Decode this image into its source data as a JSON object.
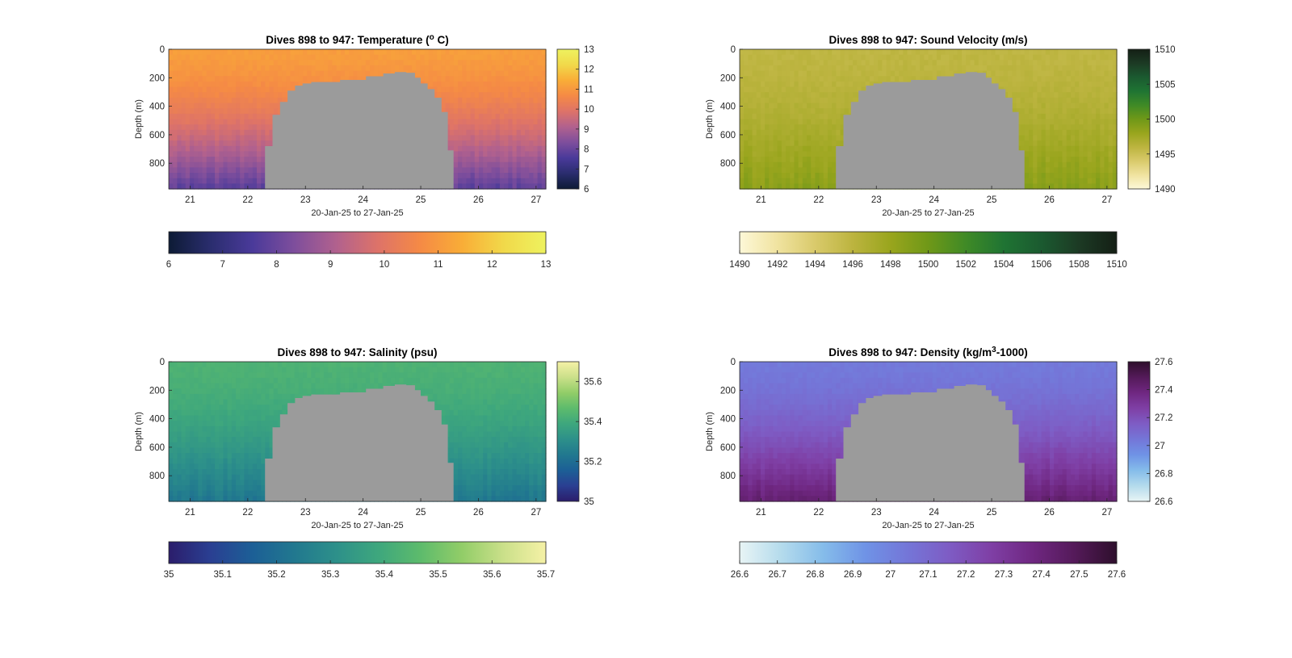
{
  "chart_data": [
    {
      "type": "heatmap",
      "title": "Dives 898 to 947: Temperature (",
      "title_sup": "o",
      "title_tail": " C)",
      "xlabel": "20-Jan-25 to 27-Jan-25",
      "ylabel": "Depth (m)",
      "xticks": [
        "21",
        "22",
        "23",
        "24",
        "25",
        "26",
        "27"
      ],
      "yticks": [
        "0",
        "200",
        "400",
        "600",
        "800"
      ],
      "xlim": [
        20.63,
        27.17
      ],
      "ylim": [
        0,
        980
      ],
      "colorbar_right_ticks": [
        "6",
        "7",
        "8",
        "9",
        "10",
        "11",
        "12",
        "13"
      ],
      "colorbar_bottom_ticks": [
        "6",
        "7",
        "8",
        "9",
        "10",
        "11",
        "12",
        "13"
      ],
      "clim": [
        6,
        13
      ],
      "colormap": [
        "#0d1b35",
        "#2a2d6e",
        "#4a3a9a",
        "#7e4e9c",
        "#b1618e",
        "#de7368",
        "#f58a45",
        "#f9ad37",
        "#f1d94a",
        "#eef25f"
      ],
      "surface_value": 11.1,
      "bottom_value": 7.8,
      "missing_color": "#9b9b9b",
      "missing_region_depth_top": [
        [
          22.3,
          680
        ],
        [
          22.43,
          460
        ],
        [
          22.56,
          370
        ],
        [
          22.69,
          290
        ],
        [
          22.82,
          255
        ],
        [
          22.95,
          240
        ],
        [
          23.1,
          230
        ],
        [
          23.6,
          215
        ],
        [
          24.05,
          190
        ],
        [
          24.35,
          170
        ],
        [
          24.55,
          160
        ],
        [
          24.75,
          165
        ],
        [
          24.9,
          200
        ],
        [
          25.0,
          240
        ],
        [
          25.12,
          280
        ],
        [
          25.24,
          340
        ],
        [
          25.36,
          440
        ],
        [
          25.47,
          710
        ],
        [
          25.57,
          980
        ]
      ]
    },
    {
      "type": "heatmap",
      "title": "Dives 898 to 947: Sound Velocity (m/s)",
      "xlabel": "20-Jan-25 to 27-Jan-25",
      "ylabel": "Depth (m)",
      "xticks": [
        "21",
        "22",
        "23",
        "24",
        "25",
        "26",
        "27"
      ],
      "yticks": [
        "0",
        "200",
        "400",
        "600",
        "800"
      ],
      "xlim": [
        20.63,
        27.17
      ],
      "ylim": [
        0,
        980
      ],
      "colorbar_right_ticks": [
        "1490",
        "1495",
        "1500",
        "1505",
        "1510"
      ],
      "colorbar_bottom_ticks": [
        "1490",
        "1492",
        "1494",
        "1496",
        "1498",
        "1500",
        "1502",
        "1504",
        "1506",
        "1508",
        "1510"
      ],
      "clim": [
        1490,
        1510
      ],
      "colormap": [
        "#fdf8d8",
        "#f0e3a0",
        "#d9ca6b",
        "#bcb43f",
        "#99a51d",
        "#6f9818",
        "#3f8a26",
        "#1f7433",
        "#1b5a30",
        "#1c3a24",
        "#141f15"
      ],
      "surface_value": 1495.8,
      "bottom_value": 1498.8,
      "missing_color": "#9b9b9b",
      "missing_region_depth_top": [
        [
          22.3,
          680
        ],
        [
          22.43,
          460
        ],
        [
          22.56,
          370
        ],
        [
          22.69,
          290
        ],
        [
          22.82,
          255
        ],
        [
          22.95,
          240
        ],
        [
          23.1,
          230
        ],
        [
          23.6,
          215
        ],
        [
          24.05,
          190
        ],
        [
          24.35,
          170
        ],
        [
          24.55,
          160
        ],
        [
          24.75,
          165
        ],
        [
          24.9,
          200
        ],
        [
          25.0,
          240
        ],
        [
          25.12,
          280
        ],
        [
          25.24,
          340
        ],
        [
          25.36,
          440
        ],
        [
          25.47,
          710
        ],
        [
          25.57,
          980
        ]
      ]
    },
    {
      "type": "heatmap",
      "title": "Dives 898 to 947: Salinity (psu)",
      "xlabel": "20-Jan-25 to 27-Jan-25",
      "ylabel": "Depth (m)",
      "xticks": [
        "21",
        "22",
        "23",
        "24",
        "25",
        "26",
        "27"
      ],
      "yticks": [
        "0",
        "200",
        "400",
        "600",
        "800"
      ],
      "xlim": [
        20.63,
        27.17
      ],
      "ylim": [
        0,
        980
      ],
      "colorbar_right_ticks": [
        "35",
        "35.2",
        "35.4",
        "35.6"
      ],
      "colorbar_bottom_ticks": [
        "35",
        "35.1",
        "35.2",
        "35.3",
        "35.4",
        "35.5",
        "35.6",
        "35.7"
      ],
      "clim": [
        35,
        35.7
      ],
      "colormap": [
        "#2b1d6b",
        "#2a3f92",
        "#1c5f96",
        "#21788f",
        "#2d908a",
        "#3ea77d",
        "#5dbb6c",
        "#92cd68",
        "#cbe08a",
        "#f5f1a6"
      ],
      "surface_value": 35.43,
      "bottom_value": 35.23,
      "missing_color": "#9b9b9b",
      "missing_region_depth_top": [
        [
          22.3,
          680
        ],
        [
          22.43,
          460
        ],
        [
          22.56,
          370
        ],
        [
          22.69,
          290
        ],
        [
          22.82,
          255
        ],
        [
          22.95,
          240
        ],
        [
          23.1,
          230
        ],
        [
          23.6,
          215
        ],
        [
          24.05,
          190
        ],
        [
          24.35,
          170
        ],
        [
          24.55,
          160
        ],
        [
          24.75,
          165
        ],
        [
          24.9,
          200
        ],
        [
          25.0,
          240
        ],
        [
          25.12,
          280
        ],
        [
          25.24,
          340
        ],
        [
          25.36,
          440
        ],
        [
          25.47,
          710
        ],
        [
          25.57,
          980
        ]
      ]
    },
    {
      "type": "heatmap",
      "title": "Dives 898 to 947: Density (kg/m",
      "title_sup": "3",
      "title_tail": "-1000)",
      "xlabel": "20-Jan-25 to 27-Jan-25",
      "ylabel": "Depth (m)",
      "xticks": [
        "21",
        "22",
        "23",
        "24",
        "25",
        "26",
        "27"
      ],
      "yticks": [
        "0",
        "200",
        "400",
        "600",
        "800"
      ],
      "xlim": [
        20.63,
        27.17
      ],
      "ylim": [
        0,
        980
      ],
      "colorbar_right_ticks": [
        "26.6",
        "26.8",
        "27",
        "27.2",
        "27.4",
        "27.6"
      ],
      "colorbar_bottom_ticks": [
        "26.6",
        "26.7",
        "26.8",
        "26.9",
        "27",
        "27.1",
        "27.2",
        "27.3",
        "27.4",
        "27.5",
        "27.6"
      ],
      "clim": [
        26.6,
        27.6
      ],
      "colormap": [
        "#e8f4f5",
        "#b4dbec",
        "#85bcea",
        "#6f93e6",
        "#7476d8",
        "#7e5cc4",
        "#7f3fa5",
        "#6f2781",
        "#541a59",
        "#2e0f2c"
      ],
      "surface_value": 27.03,
      "bottom_value": 27.43,
      "missing_color": "#9b9b9b",
      "missing_region_depth_top": [
        [
          22.3,
          680
        ],
        [
          22.43,
          460
        ],
        [
          22.56,
          370
        ],
        [
          22.69,
          290
        ],
        [
          22.82,
          255
        ],
        [
          22.95,
          240
        ],
        [
          23.1,
          230
        ],
        [
          23.6,
          215
        ],
        [
          24.05,
          190
        ],
        [
          24.35,
          170
        ],
        [
          24.55,
          160
        ],
        [
          24.75,
          165
        ],
        [
          24.9,
          200
        ],
        [
          25.0,
          240
        ],
        [
          25.12,
          280
        ],
        [
          25.24,
          340
        ],
        [
          25.36,
          440
        ],
        [
          25.47,
          710
        ],
        [
          25.57,
          980
        ]
      ]
    }
  ]
}
